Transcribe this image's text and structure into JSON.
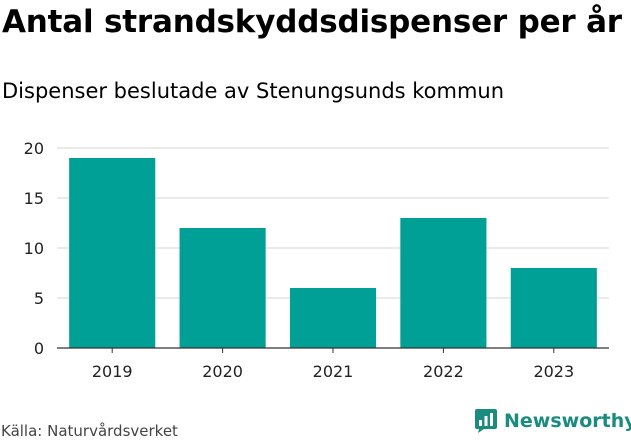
{
  "title": "Antal strandskyddsdispenser per år",
  "subtitle": "Dispenser beslutade av Stenungsunds kommun",
  "source": "Källa: Naturvårdsverket",
  "brand": {
    "name": "Newsworthy",
    "icon": "newsworthy-logo-icon",
    "color": "#1a8c7f"
  },
  "colors": {
    "bar": "#00a096",
    "grid": "#d6d6d6",
    "axis": "#333333"
  },
  "chart_data": {
    "type": "bar",
    "title": "Antal strandskyddsdispenser per år",
    "subtitle": "Dispenser beslutade av Stenungsunds kommun",
    "categories": [
      "2019",
      "2020",
      "2021",
      "2022",
      "2023"
    ],
    "values": [
      19,
      12,
      6,
      13,
      8
    ],
    "xlabel": "",
    "ylabel": "",
    "ylim": [
      0,
      20
    ],
    "yticks": [
      0,
      5,
      10,
      15,
      20
    ],
    "grid": true,
    "legend": "none"
  }
}
